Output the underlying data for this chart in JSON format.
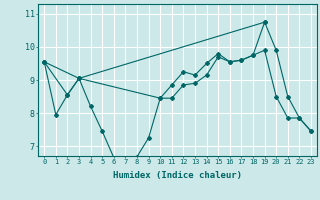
{
  "bg_color": "#cce8e8",
  "grid_color": "#ffffff",
  "line_color": "#006666",
  "xlabel": "Humidex (Indice chaleur)",
  "ylim": [
    6.7,
    11.3
  ],
  "xlim": [
    -0.5,
    23.5
  ],
  "yticks": [
    7,
    8,
    9,
    10,
    11
  ],
  "xticks": [
    0,
    1,
    2,
    3,
    4,
    5,
    6,
    7,
    8,
    9,
    10,
    11,
    12,
    13,
    14,
    15,
    16,
    17,
    18,
    19,
    20,
    21,
    22,
    23
  ],
  "line1_x": [
    0,
    1,
    2,
    3,
    4,
    5,
    6,
    7,
    8,
    9,
    10,
    11,
    12,
    13,
    14,
    15,
    16,
    17,
    18,
    19,
    20,
    21,
    22,
    23
  ],
  "line1_y": [
    9.55,
    7.95,
    8.55,
    9.05,
    8.2,
    7.45,
    6.65,
    6.62,
    6.68,
    7.25,
    8.45,
    8.45,
    8.85,
    8.9,
    9.15,
    9.7,
    9.55,
    9.6,
    9.75,
    9.9,
    8.5,
    7.85,
    7.85,
    7.45
  ],
  "line2_x": [
    0,
    2,
    3,
    10,
    11,
    12,
    13,
    14,
    15,
    16,
    17,
    18,
    19,
    20,
    21,
    22,
    23
  ],
  "line2_y": [
    9.55,
    8.55,
    9.05,
    8.45,
    8.85,
    9.25,
    9.15,
    9.5,
    9.8,
    9.55,
    9.6,
    9.75,
    10.75,
    9.9,
    8.5,
    7.85,
    7.45
  ],
  "line3_x": [
    0,
    3,
    19
  ],
  "line3_y": [
    9.55,
    9.05,
    10.75
  ]
}
